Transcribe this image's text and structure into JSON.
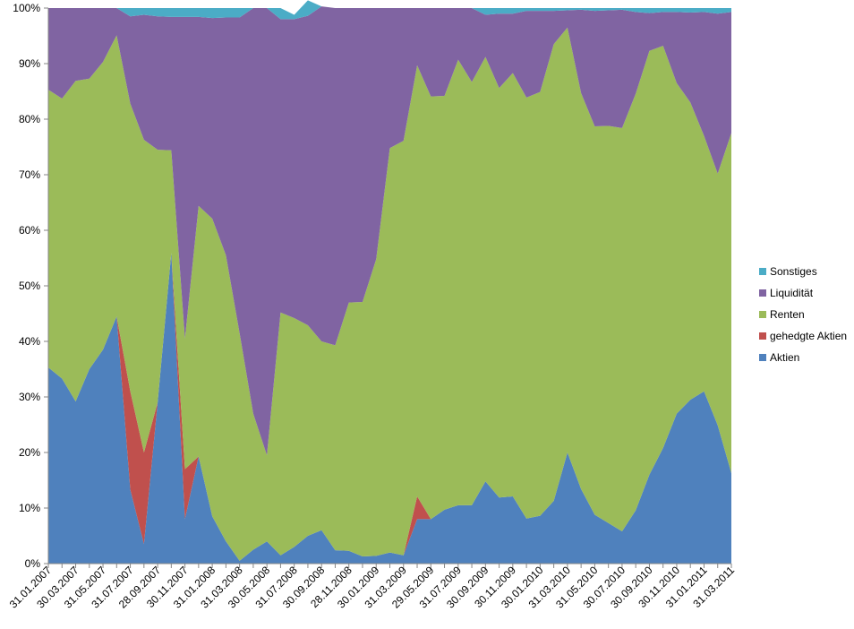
{
  "chart_data": {
    "type": "area",
    "stacked": "percent",
    "title": "",
    "xlabel": "",
    "ylabel": "",
    "ylim": [
      0,
      100
    ],
    "y_ticks": [
      "0%",
      "10%",
      "20%",
      "30%",
      "40%",
      "50%",
      "60%",
      "70%",
      "80%",
      "90%",
      "100%"
    ],
    "grid": false,
    "legend_position": "right",
    "x_tick_labels": [
      "31.01.2007",
      "30.03.2007",
      "31.05.2007",
      "31.07.2007",
      "28.09.2007",
      "30.11.2007",
      "31.01.2008",
      "31.03.2008",
      "30.05.2008",
      "31.07.2008",
      "30.09.2008",
      "28.11.2008",
      "30.01.2009",
      "31.03.2009",
      "29.05.2009",
      "31.07.2009",
      "30.09.2009",
      "30.11.2009",
      "30.01.2010",
      "31.03.2010",
      "31.05.2010",
      "30.07.2010",
      "30.09.2010",
      "30.11.2010",
      "31.01.2011",
      "31.03.2011"
    ],
    "x_count": 51,
    "series": [
      {
        "name": "Aktien",
        "color": "#4F81BD",
        "values": [
          35.3,
          33.3,
          29.2,
          35.0,
          38.5,
          44.5,
          13.3,
          3.5,
          29.0,
          55.9,
          8.0,
          19.3,
          8.5,
          4.0,
          0.5,
          2.5,
          4.0,
          1.5,
          3.0,
          5.0,
          6.0,
          2.4,
          2.3,
          1.3,
          1.4,
          2.0,
          1.5,
          8.0,
          8.0,
          9.7,
          10.5,
          10.5,
          14.8,
          11.9,
          12.1,
          8.1,
          8.6,
          11.3,
          20.0,
          13.4,
          8.8,
          7.3,
          5.8,
          9.6,
          16.0,
          20.8,
          27.0,
          29.5,
          31.0,
          24.9,
          16.3
        ]
      },
      {
        "name": "gehedgte Aktien",
        "color": "#C0504D",
        "values": [
          0,
          0,
          0,
          0,
          0,
          0,
          17.7,
          16.5,
          0,
          0,
          9.0,
          0,
          0,
          0,
          0,
          0,
          0,
          0,
          0,
          0,
          0,
          0,
          0,
          0,
          0,
          0,
          0,
          4.1,
          0,
          0,
          0,
          0,
          0,
          0,
          0,
          0,
          0,
          0,
          0,
          0,
          0,
          0,
          0,
          0,
          0,
          0,
          0,
          0,
          0,
          0,
          0
        ]
      },
      {
        "name": "Renten",
        "color": "#9BBB59",
        "values": [
          50.0,
          50.4,
          57.7,
          52.3,
          51.8,
          50.6,
          51.8,
          56.3,
          45.5,
          18.5,
          23.5,
          45.1,
          53.6,
          51.5,
          41.0,
          24.5,
          15.5,
          43.7,
          41.2,
          37.9,
          34.0,
          36.9,
          44.7,
          45.8,
          53.4,
          72.8,
          74.6,
          77.6,
          76.1,
          74.5,
          80.2,
          76.2,
          76.4,
          73.7,
          76.2,
          75.8,
          76.3,
          82.2,
          76.5,
          71.3,
          69.9,
          71.5,
          72.6,
          75.0,
          76.3,
          72.4,
          59.5,
          53.5,
          46.0,
          45.3,
          61.2
        ]
      },
      {
        "name": "Liquidität",
        "color": "#8064A2",
        "values": [
          14.7,
          16.3,
          13.1,
          12.7,
          9.7,
          4.9,
          15.7,
          22.5,
          24.0,
          24.0,
          57.9,
          34.0,
          36.1,
          42.8,
          56.8,
          73.0,
          80.5,
          52.8,
          53.8,
          55.7,
          60.3,
          60.7,
          53.0,
          52.9,
          45.2,
          25.2,
          23.9,
          10.3,
          15.9,
          15.8,
          9.3,
          13.3,
          7.6,
          13.4,
          10.7,
          15.6,
          14.6,
          6.0,
          3.1,
          15.0,
          20.8,
          20.8,
          21.3,
          14.7,
          6.8,
          6.1,
          12.8,
          16.2,
          22.3,
          28.8,
          21.8
        ]
      },
      {
        "name": "Sonstiges",
        "color": "#4BACC6",
        "values": [
          0,
          0,
          0,
          0,
          0,
          0,
          1.5,
          1.2,
          1.5,
          1.6,
          1.6,
          1.6,
          1.8,
          1.7,
          1.7,
          0,
          0,
          2.0,
          0.8,
          2.8,
          0,
          0,
          0,
          0,
          0,
          0,
          0,
          0,
          0,
          0,
          0,
          0,
          1.2,
          1.0,
          1.0,
          0.5,
          0.5,
          0.5,
          0.4,
          0.3,
          0.5,
          0.4,
          0.3,
          0.7,
          0.9,
          0.7,
          0.7,
          0.8,
          0.7,
          1.0,
          0.7
        ]
      }
    ]
  }
}
